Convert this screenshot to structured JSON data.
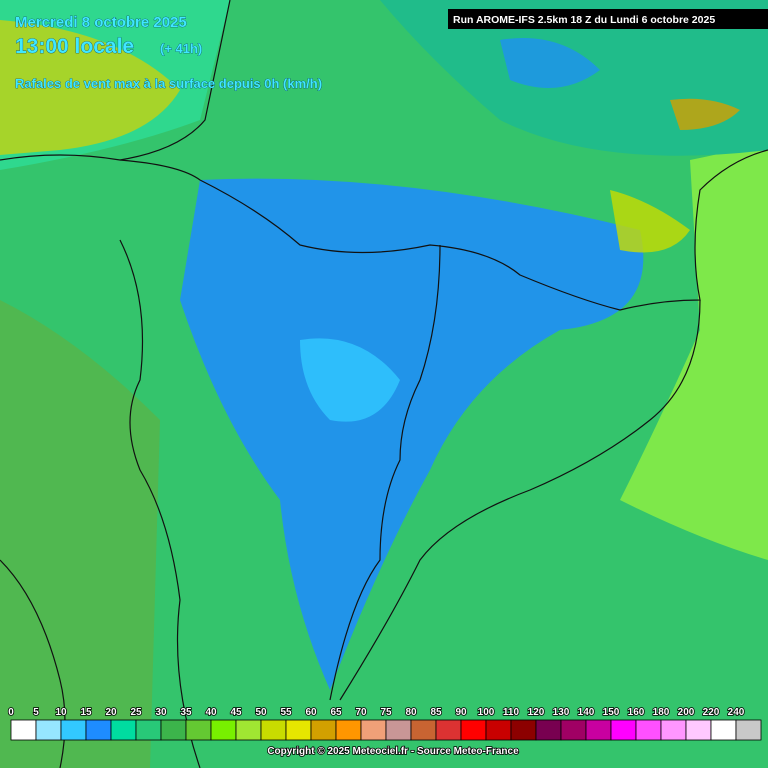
{
  "header": {
    "date": "Mercredi 8 octobre 2025",
    "time": "13:00 locale",
    "lead": "(+ 41h)",
    "parameter": "Rafales de vent max à la surface depuis 0h (km/h)",
    "run": "Run AROME-IFS 2.5km 18 Z du Lundi 6 octobre 2025"
  },
  "legend": {
    "ticks": [
      0,
      5,
      10,
      15,
      20,
      25,
      30,
      35,
      40,
      45,
      50,
      55,
      60,
      65,
      70,
      75,
      80,
      85,
      90,
      100,
      110,
      120,
      130,
      140,
      150,
      160,
      180,
      200,
      220,
      240
    ],
    "colors": [
      "#ffffff",
      "#96e6ff",
      "#32c8ff",
      "#1e8cff",
      "#00dca0",
      "#28c878",
      "#3cb44b",
      "#64c832",
      "#78f000",
      "#a0e632",
      "#c8dc00",
      "#e6e600",
      "#d2a000",
      "#ff9600",
      "#f0a078",
      "#c89696",
      "#c86432",
      "#dc3232",
      "#ff0000",
      "#c80000",
      "#8c0000",
      "#780050",
      "#a00064",
      "#c800a0",
      "#ff00ff",
      "#ff50ff",
      "#ff96ff",
      "#ffc8ff",
      "#ffffff",
      "#c8c8c8"
    ]
  },
  "footer": {
    "copyright": "Copyright © 2025 Meteociel.fr - Source Meteo-France"
  }
}
